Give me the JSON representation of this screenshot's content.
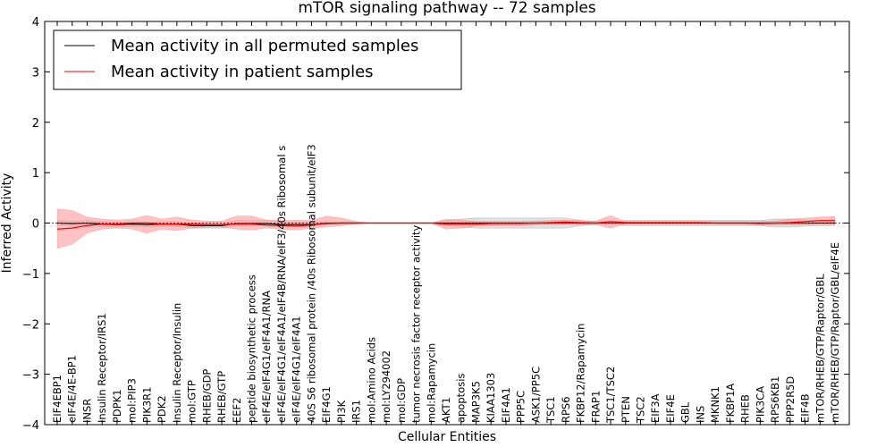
{
  "chart_data": {
    "type": "line",
    "title": "mTOR signaling pathway -- 72 samples",
    "xlabel": "Cellular Entities",
    "ylabel": "Inferred Activity",
    "ylim": [
      -4,
      4
    ],
    "yticks": [
      -4,
      -3,
      -2,
      -1,
      0,
      1,
      2,
      3,
      4
    ],
    "ytick_labels": [
      "−4",
      "−3",
      "−2",
      "−1",
      "0",
      "1",
      "2",
      "3",
      "4"
    ],
    "legend_position": "upper-left",
    "categories": [
      "EIF4EBP1",
      "eIF4E/4E-BP1",
      "INSR",
      "Insulin Receptor/IRS1",
      "PDPK1",
      "mol:PIP3",
      "PIK3R1",
      "PDK2",
      "Insulin Receptor/Insulin",
      "mol:GTP",
      "RHEB/GDP",
      "RHEB/GTP",
      "EEF2",
      "peptide biosynthetic process",
      "eIF4E/eIF4G1/eIF4A1/RNA",
      "eIF4E/eIF4G1/eIF4A1/eIF4B/RNA/eIF3/40s Ribosomal s",
      "eIF4E/eIF4G1/eIF4A1",
      "40S S6 ribosomal protein /40s Ribosomal subunit/eIF3",
      "EIF4G1",
      "PI3K",
      "IRS1",
      "mol:Amino Acids",
      "mol:LY294002",
      "mol:GDP",
      "tumor necrosis factor receptor activity",
      "mol:Rapamycin",
      "AKT1",
      "apoptosis",
      "MAP3K5",
      "KIAA1303",
      "EIF4A1",
      "PPP5C",
      "ASK1/PP5C",
      "TSC1",
      "RPS6",
      "FKBP12/Rapamycin",
      "FRAP1",
      "TSC1/TSC2",
      "PTEN",
      "TSC2",
      "EIF3A",
      "EIF4E",
      "GBL",
      "INS",
      "MKNK1",
      "FKBP1A",
      "RHEB",
      "PIK3CA",
      "RPS6KB1",
      "PPP2R5D",
      "EIF4B",
      "mTOR/RHEB/GTP/Raptor/GBL",
      "mTOR/RHEB/GTP/Raptor/GBL/eIF4E"
    ],
    "series": [
      {
        "name": "Mean activity in all permuted samples",
        "color": "#000000",
        "values": [
          0.0,
          -0.01,
          0.0,
          -0.02,
          -0.03,
          -0.02,
          -0.03,
          -0.02,
          -0.02,
          -0.05,
          -0.05,
          -0.05,
          -0.01,
          -0.01,
          -0.01,
          -0.03,
          -0.03,
          -0.03,
          -0.01,
          0.0,
          0.0,
          0.0,
          0.0,
          0.0,
          0.0,
          0.0,
          0.0,
          0.0,
          0.0,
          0.0,
          0.0,
          0.0,
          0.0,
          0.0,
          0.0,
          0.0,
          0.0,
          0.0,
          0.0,
          0.0,
          0.0,
          0.0,
          0.0,
          0.0,
          0.0,
          0.0,
          0.0,
          0.0,
          0.0,
          0.0,
          0.0,
          0.0,
          0.0
        ],
        "band_lower": [
          -0.05,
          -0.06,
          -0.05,
          -0.07,
          -0.08,
          -0.07,
          -0.08,
          -0.07,
          -0.07,
          -0.1,
          -0.1,
          -0.1,
          -0.05,
          -0.05,
          -0.05,
          -0.06,
          -0.06,
          -0.06,
          -0.03,
          -0.02,
          -0.01,
          0.0,
          0.0,
          0.0,
          0.0,
          0.0,
          -0.05,
          -0.08,
          -0.1,
          -0.1,
          -0.1,
          -0.1,
          -0.1,
          -0.1,
          -0.1,
          -0.05,
          -0.03,
          -0.03,
          -0.05,
          -0.05,
          -0.05,
          -0.05,
          -0.05,
          -0.05,
          -0.05,
          -0.05,
          -0.05,
          -0.05,
          -0.08,
          -0.08,
          -0.06,
          -0.05,
          -0.05
        ],
        "band_upper": [
          0.05,
          0.04,
          0.05,
          0.03,
          0.02,
          0.03,
          0.02,
          0.03,
          0.03,
          0.0,
          0.0,
          0.0,
          0.05,
          0.05,
          0.05,
          0.02,
          0.02,
          0.02,
          0.03,
          0.02,
          0.01,
          0.0,
          0.0,
          0.0,
          0.0,
          0.0,
          0.05,
          0.08,
          0.1,
          0.1,
          0.1,
          0.1,
          0.1,
          0.1,
          0.1,
          0.05,
          0.03,
          0.03,
          0.05,
          0.05,
          0.05,
          0.05,
          0.05,
          0.05,
          0.05,
          0.05,
          0.05,
          0.05,
          0.08,
          0.08,
          0.06,
          0.05,
          0.05
        ],
        "band_color": "#d8d8d8"
      },
      {
        "name": "Mean activity in patient samples",
        "color": "#ff0000",
        "values": [
          -0.12,
          -0.1,
          -0.05,
          -0.02,
          -0.02,
          0.0,
          0.0,
          -0.02,
          -0.02,
          -0.02,
          -0.03,
          -0.03,
          -0.02,
          -0.02,
          -0.04,
          -0.05,
          -0.06,
          -0.04,
          0.0,
          0.0,
          0.0,
          0.0,
          0.0,
          0.0,
          0.0,
          0.0,
          -0.02,
          -0.02,
          -0.02,
          -0.01,
          -0.01,
          -0.01,
          0.0,
          0.01,
          0.02,
          0.01,
          0.0,
          0.03,
          0.01,
          0.01,
          0.01,
          0.01,
          0.01,
          0.01,
          0.0,
          0.0,
          0.0,
          -0.01,
          0.0,
          0.01,
          0.03,
          0.05,
          0.05
        ],
        "band_lower": [
          -0.5,
          -0.42,
          -0.2,
          -0.12,
          -0.1,
          -0.12,
          -0.2,
          -0.12,
          -0.15,
          -0.1,
          -0.08,
          -0.08,
          -0.12,
          -0.14,
          -0.1,
          -0.12,
          -0.14,
          -0.1,
          -0.08,
          -0.05,
          -0.02,
          0.0,
          0.0,
          0.0,
          0.0,
          0.0,
          -0.12,
          -0.1,
          -0.06,
          -0.05,
          -0.05,
          -0.05,
          -0.04,
          -0.03,
          -0.03,
          -0.03,
          -0.03,
          -0.1,
          -0.02,
          -0.02,
          -0.02,
          -0.02,
          -0.02,
          -0.02,
          -0.02,
          -0.02,
          -0.02,
          -0.03,
          -0.04,
          -0.04,
          -0.03,
          -0.02,
          -0.02
        ],
        "band_upper": [
          0.28,
          0.25,
          0.12,
          0.08,
          0.06,
          0.08,
          0.15,
          0.08,
          0.12,
          0.06,
          0.04,
          0.04,
          0.14,
          0.14,
          0.06,
          0.05,
          0.06,
          0.05,
          0.14,
          0.1,
          0.03,
          0.0,
          0.0,
          0.0,
          0.0,
          0.0,
          0.08,
          0.06,
          0.03,
          0.03,
          0.03,
          0.03,
          0.04,
          0.05,
          0.06,
          0.05,
          0.04,
          0.15,
          0.03,
          0.03,
          0.03,
          0.03,
          0.03,
          0.03,
          0.03,
          0.03,
          0.03,
          0.03,
          0.04,
          0.08,
          0.1,
          0.12,
          0.13
        ],
        "band_color": "#ff9999"
      }
    ]
  }
}
